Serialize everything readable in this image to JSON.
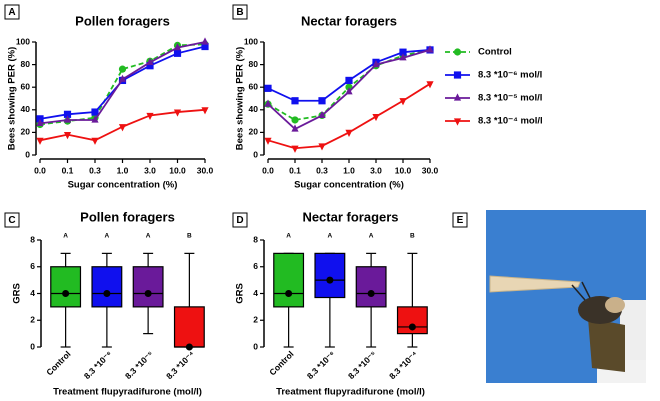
{
  "chart_data": [
    {
      "type": "line",
      "panel_label": "A",
      "title": "Pollen foragers",
      "xlabel": "Sugar concentration (%)",
      "ylabel": "Bees showing PER (%)",
      "categories": [
        "0.0",
        "0.1",
        "0.3",
        "1.0",
        "3.0",
        "10.0",
        "30.0"
      ],
      "ylim": [
        0,
        100
      ],
      "yticks": [
        0,
        20,
        40,
        60,
        80,
        100
      ],
      "legend": false,
      "series": [
        {
          "name": "Control",
          "color": "#22bb22",
          "marker": "circle",
          "dashed": true,
          "values": [
            27,
            30,
            33,
            76,
            83,
            97,
            98
          ]
        },
        {
          "name": "8.3 *10⁻⁶ mol/l",
          "color": "#1010ee",
          "marker": "square",
          "dashed": false,
          "values": [
            32,
            36,
            38,
            66,
            79,
            90,
            96
          ]
        },
        {
          "name": "8.3 *10⁻⁵ mol/l",
          "color": "#6a1a9a",
          "marker": "triangle",
          "dashed": false,
          "values": [
            28,
            31,
            31,
            67,
            82,
            95,
            100
          ]
        },
        {
          "name": "8.3 *10⁻⁴ mol/l",
          "color": "#ee1111",
          "marker": "triangle-down",
          "dashed": false,
          "values": [
            13,
            18,
            13,
            25,
            35,
            38,
            40
          ]
        }
      ]
    },
    {
      "type": "line",
      "panel_label": "B",
      "title": "Nectar foragers",
      "xlabel": "Sugar concentration (%)",
      "ylabel": "Bees showing PER (%)",
      "categories": [
        "0.0",
        "0.1",
        "0.3",
        "1.0",
        "3.0",
        "10.0",
        "30.0"
      ],
      "ylim": [
        0,
        100
      ],
      "yticks": [
        0,
        20,
        40,
        60,
        80,
        100
      ],
      "legend": true,
      "series": [
        {
          "name": "Control",
          "color": "#22bb22",
          "marker": "circle",
          "dashed": true,
          "values": [
            45,
            31,
            35,
            60,
            79,
            88,
            93
          ]
        },
        {
          "name": "8.3 *10⁻⁶ mol/l",
          "color": "#1010ee",
          "marker": "square",
          "dashed": false,
          "values": [
            59,
            48,
            48,
            66,
            82,
            91,
            93
          ]
        },
        {
          "name": "8.3 *10⁻⁵ mol/l",
          "color": "#6a1a9a",
          "marker": "triangle",
          "dashed": false,
          "values": [
            45,
            23,
            35,
            56,
            80,
            86,
            93
          ]
        },
        {
          "name": "8.3 *10⁻⁴ mol/l",
          "color": "#ee1111",
          "marker": "triangle-down",
          "dashed": false,
          "values": [
            13,
            6,
            8,
            20,
            34,
            48,
            63
          ]
        }
      ]
    },
    {
      "type": "box",
      "panel_label": "C",
      "title": "Pollen foragers",
      "xlabel": "Treatment flupyradifurone (mol/l)",
      "ylabel": "GRS",
      "categories": [
        "Control",
        "8.3 *10⁻⁶",
        "8.3 *10⁻⁵",
        "8.3 *10⁻⁴"
      ],
      "group_labels": [
        "A",
        "A",
        "A",
        "B"
      ],
      "colors": [
        "#22bb22",
        "#1010ee",
        "#6a1a9a",
        "#ee1111"
      ],
      "ylim": [
        0,
        8
      ],
      "yticks": [
        0,
        2,
        4,
        6,
        8
      ],
      "boxes": [
        {
          "min": 0,
          "q1": 3,
          "median": 4,
          "q3": 6,
          "max": 7,
          "mean": 4
        },
        {
          "min": 0,
          "q1": 3,
          "median": 4,
          "q3": 6,
          "max": 7,
          "mean": 4
        },
        {
          "min": 1,
          "q1": 3,
          "median": 4,
          "q3": 6,
          "max": 7,
          "mean": 4
        },
        {
          "min": 0,
          "q1": 0,
          "median": 0,
          "q3": 3,
          "max": 7,
          "mean": 0
        }
      ]
    },
    {
      "type": "box",
      "panel_label": "D",
      "title": "Nectar foragers",
      "xlabel": "Treatment flupyradifurone (mol/l)",
      "ylabel": "GRS",
      "categories": [
        "Control",
        "8.3 *10⁻⁶",
        "8.3 *10⁻⁵",
        "8.3 *10⁻⁴"
      ],
      "group_labels": [
        "A",
        "A",
        "A",
        "B"
      ],
      "colors": [
        "#22bb22",
        "#1010ee",
        "#6a1a9a",
        "#ee1111"
      ],
      "ylim": [
        0,
        8
      ],
      "yticks": [
        0,
        2,
        4,
        6,
        8
      ],
      "boxes": [
        {
          "min": 0,
          "q1": 3,
          "median": 4,
          "q3": 7,
          "max": 7,
          "mean": 4
        },
        {
          "min": 0,
          "q1": 3.7,
          "median": 5,
          "q3": 7,
          "max": 7,
          "mean": 5
        },
        {
          "min": 0,
          "q1": 3,
          "median": 4,
          "q3": 6,
          "max": 7,
          "mean": 4
        },
        {
          "min": 0,
          "q1": 1,
          "median": 1.5,
          "q3": 3,
          "max": 7,
          "mean": 1.5
        }
      ]
    }
  ],
  "image_panel": {
    "label": "E"
  }
}
